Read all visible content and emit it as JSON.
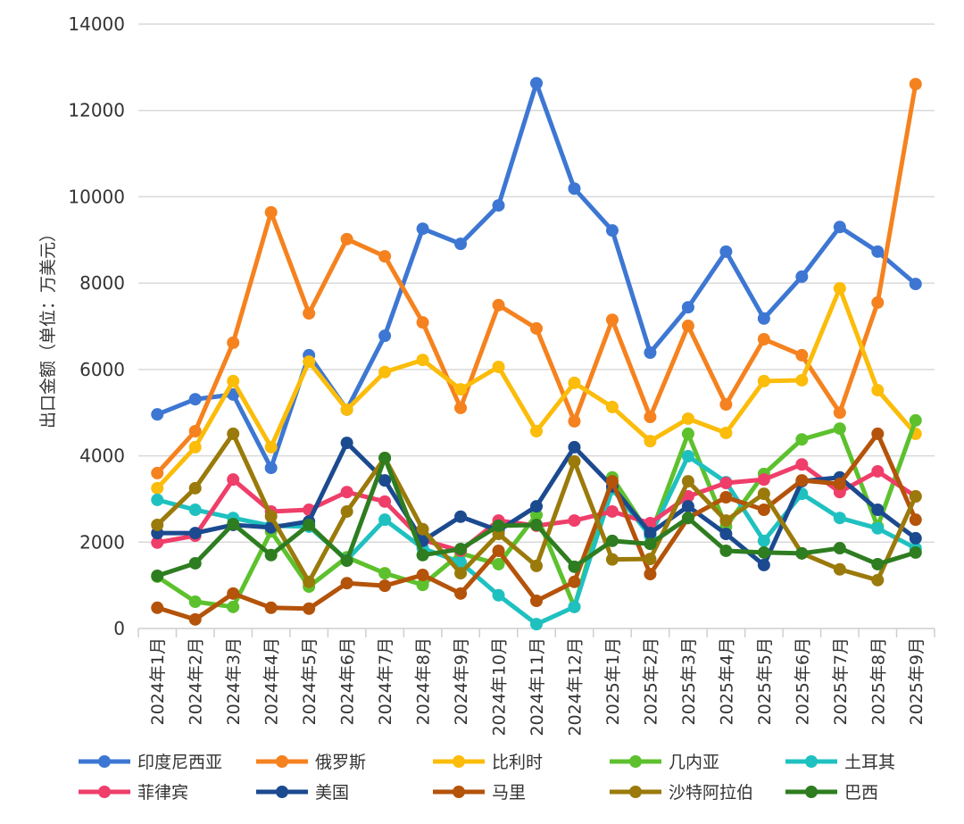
{
  "chart_data": {
    "type": "line",
    "title": "",
    "xlabel": "",
    "ylabel": "出口金额（单位：万美元）",
    "ylim": [
      0,
      14000
    ],
    "yticks": [
      0,
      2000,
      4000,
      6000,
      8000,
      10000,
      12000,
      14000
    ],
    "grid": true,
    "legend_position": "bottom",
    "categories": [
      "2024年1月",
      "2024年2月",
      "2024年3月",
      "2024年4月",
      "2024年5月",
      "2024年6月",
      "2024年7月",
      "2024年8月",
      "2024年9月",
      "2024年10月",
      "2024年11月",
      "2024年12月",
      "2025年1月",
      "2025年2月",
      "2025年3月",
      "2025年4月",
      "2025年5月",
      "2025年6月",
      "2025年7月",
      "2025年8月",
      "2025年9月"
    ],
    "series": [
      {
        "name": "印度尼西亚",
        "color": "#3d77d3",
        "values": [
          4960,
          5310,
          5420,
          3720,
          6330,
          5070,
          6780,
          9260,
          8910,
          9800,
          12630,
          10190,
          9220,
          6390,
          7440,
          8730,
          7180,
          8150,
          9300,
          8730,
          7980
        ]
      },
      {
        "name": "俄罗斯",
        "color": "#f5821f",
        "values": [
          3600,
          4570,
          6620,
          9640,
          7300,
          9020,
          8620,
          7090,
          5110,
          7490,
          6950,
          4800,
          7150,
          4900,
          7010,
          5190,
          6700,
          6330,
          5000,
          7550,
          12610
        ]
      },
      {
        "name": "比利时",
        "color": "#fbbc0a",
        "values": [
          3250,
          4200,
          5730,
          4200,
          6180,
          5070,
          5940,
          6220,
          5540,
          6060,
          4570,
          5690,
          5130,
          4340,
          4860,
          4530,
          5730,
          5750,
          7880,
          5520,
          4510
        ]
      },
      {
        "name": "几内亚",
        "color": "#5dc12e",
        "values": [
          1200,
          620,
          500,
          2250,
          970,
          1650,
          1280,
          1010,
          1740,
          1490,
          2630,
          500,
          3500,
          2150,
          4510,
          2360,
          3580,
          4380,
          4630,
          2360,
          4820
        ]
      },
      {
        "name": "土耳其",
        "color": "#1fc1c0",
        "values": [
          2980,
          2750,
          2560,
          2380,
          2360,
          1590,
          2520,
          1860,
          1530,
          770,
          100,
          500,
          3230,
          2150,
          3990,
          3390,
          2030,
          3120,
          2560,
          2320,
          1860
        ]
      },
      {
        "name": "菲律宾",
        "color": "#ef3e6a",
        "values": [
          1990,
          2150,
          3450,
          2710,
          2750,
          3160,
          2940,
          2050,
          1800,
          2500,
          2380,
          2500,
          2710,
          2440,
          3060,
          3370,
          3450,
          3800,
          3160,
          3640,
          3060
        ]
      },
      {
        "name": "美国",
        "color": "#1b4a8f",
        "values": [
          2210,
          2210,
          2400,
          2340,
          2480,
          4300,
          3430,
          2030,
          2590,
          2270,
          2830,
          4200,
          3290,
          2210,
          2830,
          2190,
          1470,
          3410,
          3500,
          2750,
          2090
        ]
      },
      {
        "name": "马里",
        "color": "#b4530a",
        "values": [
          480,
          210,
          810,
          480,
          460,
          1050,
          990,
          1240,
          810,
          1800,
          640,
          1080,
          3410,
          1260,
          2560,
          3040,
          2750,
          3430,
          3350,
          4510,
          2520
        ]
      },
      {
        "name": "沙特阿拉伯",
        "color": "#9a7a0a",
        "values": [
          2400,
          3250,
          4510,
          2600,
          1080,
          2710,
          3950,
          2300,
          1280,
          2190,
          1450,
          3870,
          1600,
          1610,
          3410,
          2500,
          3120,
          1740,
          1370,
          1120,
          3060
        ]
      },
      {
        "name": "巴西",
        "color": "#2e7d20",
        "values": [
          1220,
          1510,
          2420,
          1700,
          2400,
          1570,
          3950,
          1700,
          1840,
          2380,
          2400,
          1430,
          2030,
          1960,
          2560,
          1800,
          1760,
          1740,
          1860,
          1490,
          1760
        ]
      }
    ]
  }
}
